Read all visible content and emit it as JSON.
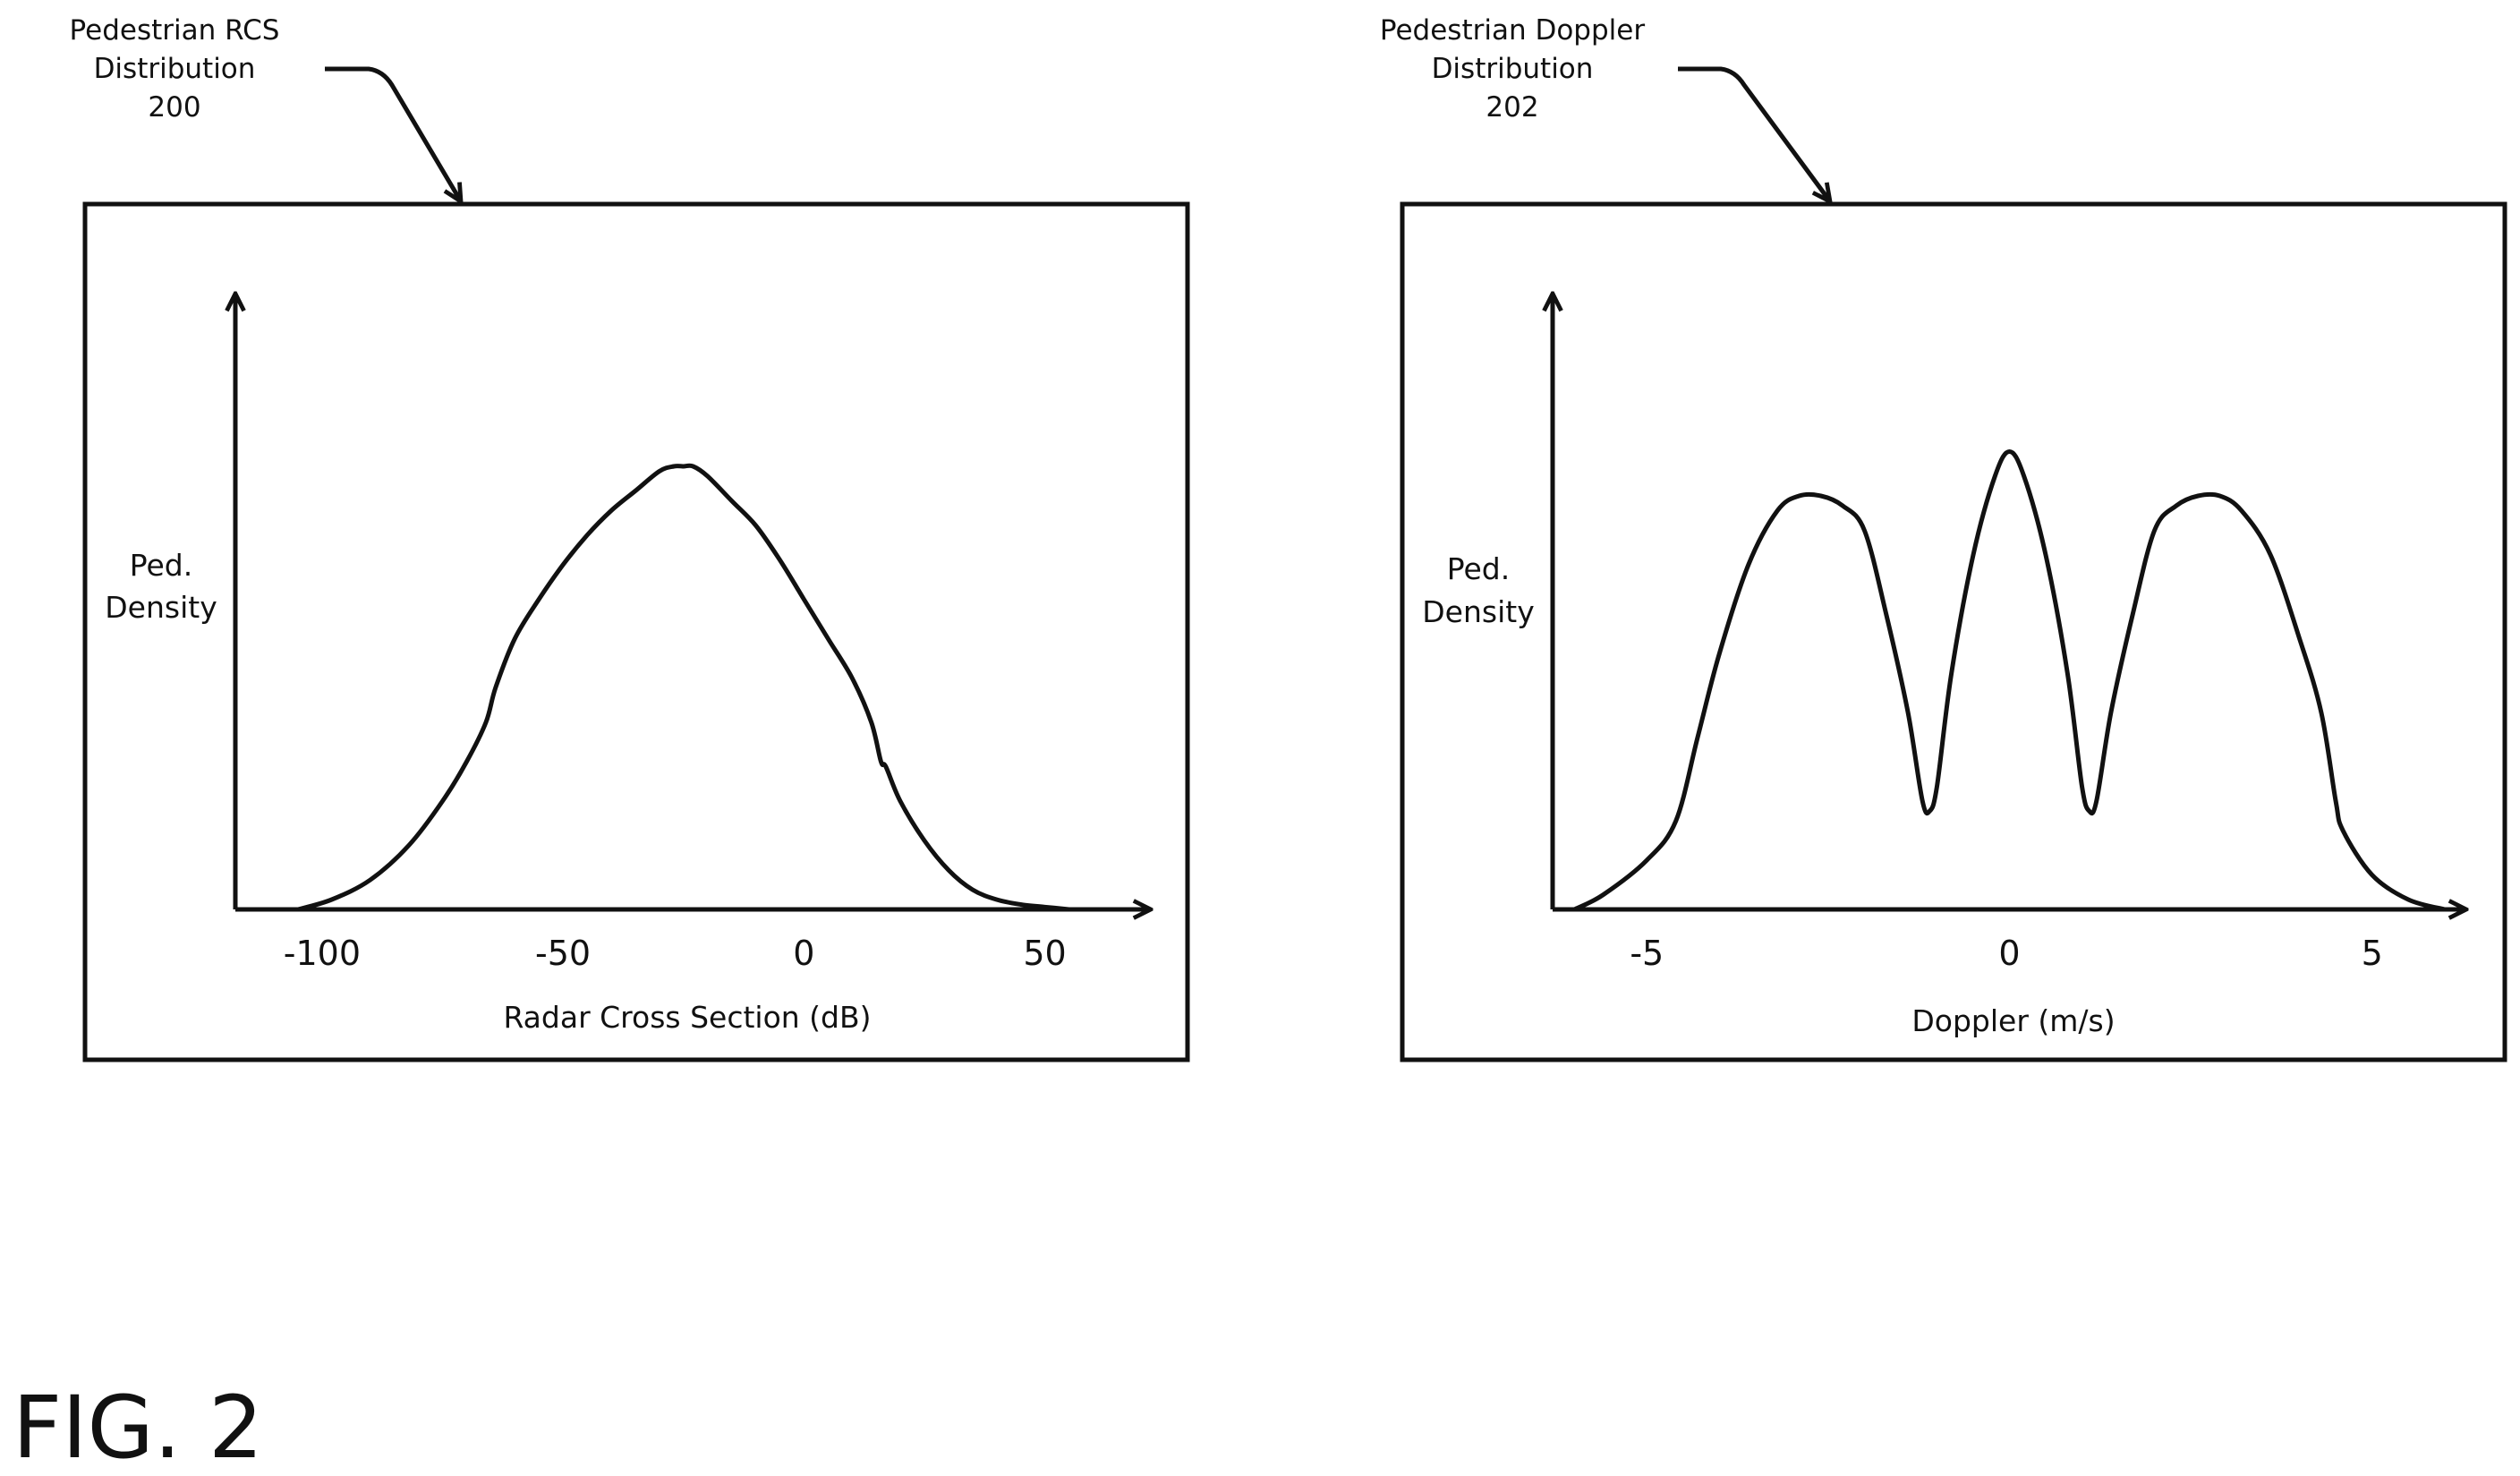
{
  "figure_label": "FIG. 2",
  "chart_data": [
    {
      "type": "line",
      "title_lines": [
        "Pedestrian RCS",
        "Distribution",
        "200"
      ],
      "ylabel_lines": [
        "Ped.",
        "Density"
      ],
      "xlabel": "Radar Cross Section (dB)",
      "xticks": [
        -100,
        -50,
        0,
        50
      ],
      "xtick_labels": [
        "-100",
        "-50",
        "0",
        "50"
      ],
      "xlim": [
        -118,
        72
      ],
      "ylim": [
        0,
        1
      ],
      "grid": false,
      "series": [
        {
          "x": [
            -105,
            -98,
            -90,
            -82,
            -75,
            -70,
            -66,
            -64,
            -60,
            -55,
            -50,
            -45,
            -40,
            -35,
            -30,
            -27,
            -25,
            -23,
            -20,
            -15,
            -10,
            -5,
            0,
            5,
            10,
            14,
            16,
            17,
            20,
            25,
            30,
            35,
            40,
            45,
            50,
            55
          ],
          "y": [
            0.0,
            0.02,
            0.06,
            0.13,
            0.22,
            0.3,
            0.38,
            0.45,
            0.55,
            0.63,
            0.7,
            0.76,
            0.81,
            0.85,
            0.89,
            0.9,
            0.9,
            0.9,
            0.88,
            0.83,
            0.78,
            0.71,
            0.63,
            0.55,
            0.47,
            0.38,
            0.3,
            0.29,
            0.22,
            0.14,
            0.08,
            0.04,
            0.02,
            0.01,
            0.005,
            0.0
          ]
        }
      ]
    },
    {
      "type": "line",
      "title_lines": [
        "Pedestrian Doppler",
        "Distribution",
        "202"
      ],
      "ylabel_lines": [
        "Ped.",
        "Density"
      ],
      "xlabel": "Doppler (m/s)",
      "xticks": [
        -5,
        0,
        5
      ],
      "xtick_labels": [
        "-5",
        "0",
        "5"
      ],
      "xlim": [
        -6.3,
        6.3
      ],
      "ylim": [
        0,
        1
      ],
      "grid": false,
      "series": [
        {
          "x": [
            -6.0,
            -5.6,
            -5.0,
            -4.6,
            -4.3,
            -4.0,
            -3.6,
            -3.2,
            -2.9,
            -2.6,
            -2.3,
            -2.0,
            -1.7,
            -1.4,
            -1.2,
            -1.1,
            -1.0,
            -0.8,
            -0.5,
            -0.2,
            0.0,
            0.2,
            0.5,
            0.8,
            1.0,
            1.1,
            1.2,
            1.4,
            1.7,
            2.0,
            2.3,
            2.6,
            2.9,
            3.2,
            3.6,
            4.0,
            4.3,
            4.5,
            4.6,
            5.0,
            5.5,
            6.0
          ],
          "y": [
            0.0,
            0.03,
            0.1,
            0.18,
            0.35,
            0.52,
            0.7,
            0.81,
            0.84,
            0.84,
            0.82,
            0.77,
            0.6,
            0.4,
            0.22,
            0.2,
            0.25,
            0.48,
            0.72,
            0.88,
            0.93,
            0.88,
            0.72,
            0.48,
            0.25,
            0.2,
            0.22,
            0.4,
            0.6,
            0.77,
            0.82,
            0.84,
            0.84,
            0.81,
            0.72,
            0.55,
            0.4,
            0.22,
            0.16,
            0.07,
            0.02,
            0.0
          ]
        }
      ]
    }
  ]
}
